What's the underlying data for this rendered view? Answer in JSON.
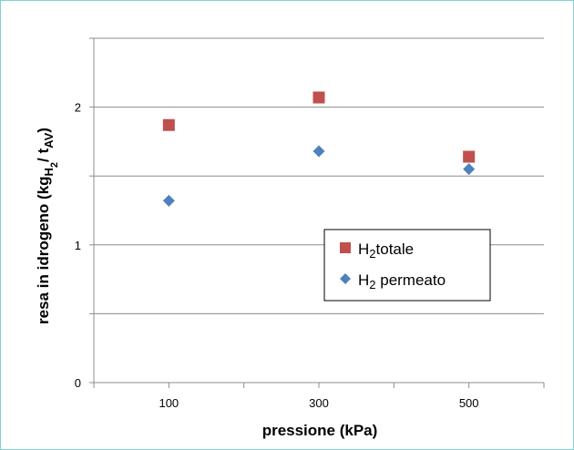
{
  "chart_data": {
    "type": "scatter",
    "xlabel": "pressione (kPa)",
    "ylabel": {
      "prefix": "resa in idrogeno (kg",
      "sub1": "H",
      "sub2": "2",
      "slash": "/ t",
      "sub3": "AV",
      "suffix": ")"
    },
    "xticks": [
      100,
      300,
      500
    ],
    "yticks": [
      0,
      1,
      2
    ],
    "xlim": [
      0,
      600
    ],
    "ylim": [
      0,
      2.5
    ],
    "grid": true,
    "legend_position": "center-right",
    "series": [
      {
        "name": "H2 totale",
        "legend": {
          "main": "H",
          "sub": "2",
          "rest": "totale"
        },
        "marker": "square",
        "color": "#c0504d",
        "x": [
          100,
          300,
          500
        ],
        "y": [
          1.87,
          2.07,
          1.64
        ]
      },
      {
        "name": "H2 permeato",
        "legend": {
          "main": "H",
          "sub": "2",
          "rest": " permeato"
        },
        "marker": "diamond",
        "color": "#4f81bd",
        "x": [
          100,
          300,
          500
        ],
        "y": [
          1.32,
          1.68,
          1.55
        ]
      }
    ]
  }
}
